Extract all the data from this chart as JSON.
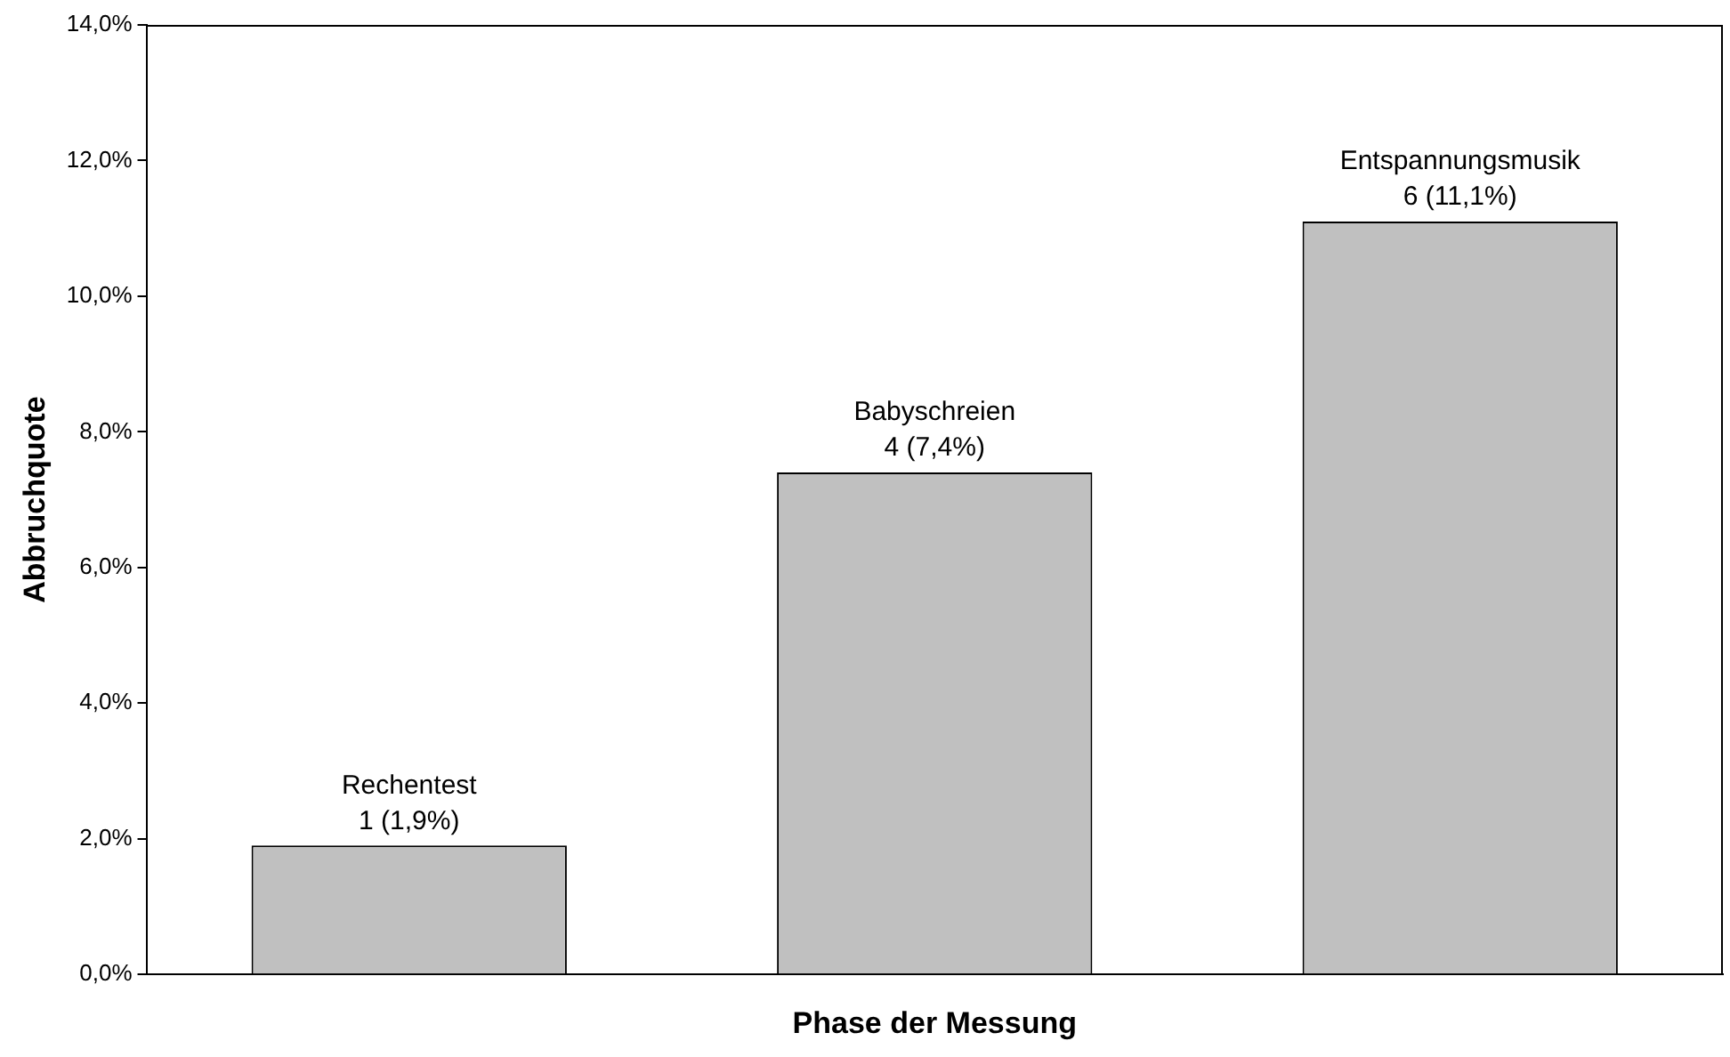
{
  "chart_data": {
    "type": "bar",
    "xlabel": "Phase der Messung",
    "ylabel": "Abbruchquote",
    "categories": [
      "Rechentest",
      "Babyschreien",
      "Entspannungsmusik"
    ],
    "values": [
      1.9,
      7.4,
      11.1
    ],
    "value_labels": [
      "1 (1,9%)",
      "4 (7,4%)",
      "6 (11,1%)"
    ],
    "color": "#c0c0c0",
    "ylim": [
      0,
      14
    ],
    "yticks": [
      {
        "value": 0,
        "label": "0,0%"
      },
      {
        "value": 2,
        "label": "2,0%"
      },
      {
        "value": 4,
        "label": "4,0%"
      },
      {
        "value": 6,
        "label": "6,0%"
      },
      {
        "value": 8,
        "label": "8,0%"
      },
      {
        "value": 10,
        "label": "10,0%"
      },
      {
        "value": 12,
        "label": "12,0%"
      },
      {
        "value": 14,
        "label": "14,0%"
      }
    ],
    "tick_labels": "y",
    "grid": false,
    "legend": false
  }
}
